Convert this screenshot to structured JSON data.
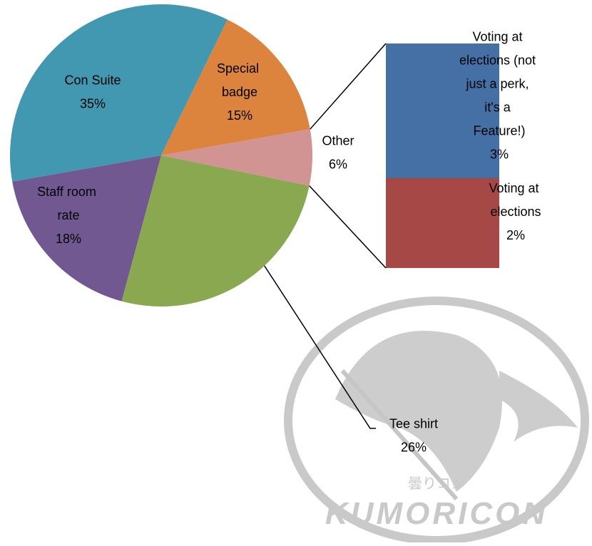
{
  "chart_data": {
    "type": "pie-of-bar",
    "categories": [
      "Con Suite",
      "Special badge",
      "Other",
      "Tee shirt",
      "Staff room rate"
    ],
    "values": [
      35,
      15,
      6,
      26,
      18
    ],
    "value_labels": [
      "35%",
      "15%",
      "6%",
      "26%",
      "18%"
    ],
    "colors": [
      "#4298b0",
      "#dc843e",
      "#d29393",
      "#8aa84f",
      "#715891"
    ],
    "bar": {
      "categories": [
        "Voting at elections (not just a perk, it's a Feature!)",
        "Voting at elections"
      ],
      "values": [
        3,
        2
      ],
      "value_labels": [
        "3%",
        "2%"
      ],
      "colors": [
        "#4470a6",
        "#a64846"
      ]
    },
    "watermark": {
      "text": "KUMORICON",
      "subtext": "曇りコン"
    }
  }
}
